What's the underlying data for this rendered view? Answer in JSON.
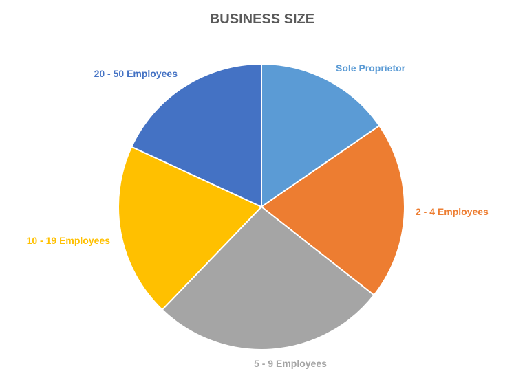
{
  "chart_data": {
    "type": "pie",
    "title": "BUSINESS SIZE",
    "categories": [
      "Sole Proprietor",
      "2 - 4 Employees",
      "5 - 9 Employees",
      "10 - 19 Employees",
      "20 - 50 Employees"
    ],
    "values": [
      15.4,
      20.2,
      26.6,
      19.7,
      18.1
    ],
    "value_unit": "percent of total (estimated)",
    "colors": [
      "#5B9BD5",
      "#ED7D31",
      "#A5A5A5",
      "#FFC000",
      "#4472C4"
    ],
    "start_angle_deg": 0,
    "direction": "clockwise",
    "legend": "none",
    "data_labels": "category names outside slices"
  }
}
